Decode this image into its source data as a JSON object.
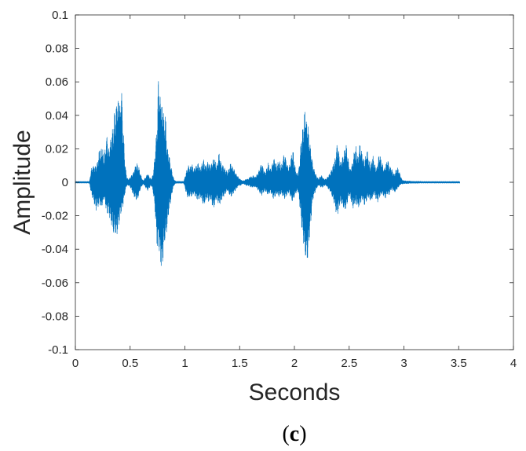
{
  "chart_data": {
    "type": "line",
    "xlabel": "Seconds",
    "ylabel": "Amplitude",
    "panel_label": {
      "open": "(",
      "letter": "c",
      "close": ")"
    },
    "xlim": [
      0,
      4
    ],
    "ylim": [
      -0.1,
      0.1
    ],
    "x_ticks": [
      0,
      0.5,
      1,
      1.5,
      2,
      2.5,
      3,
      3.5,
      4
    ],
    "x_tick_labels": [
      "0",
      "0.5",
      "1",
      "1.5",
      "2",
      "2.5",
      "3",
      "3.5",
      "4"
    ],
    "y_ticks": [
      -0.1,
      -0.08,
      -0.06,
      -0.04,
      -0.02,
      0,
      0.02,
      0.04,
      0.06,
      0.08,
      0.1
    ],
    "y_tick_labels": [
      "-0.1",
      "-0.08",
      "-0.06",
      "-0.04",
      "-0.02",
      "0",
      "0.02",
      "0.04",
      "0.06",
      "0.08",
      "0.1"
    ],
    "grid": false,
    "series": [
      {
        "color": "#0072BD",
        "sample_rate_hz": 100,
        "t0": 0,
        "envelope_max": [
          0.0005,
          0.0005,
          0.0005,
          0.0005,
          0.0005,
          0.0005,
          0.0005,
          0.0005,
          0.0005,
          0.0005,
          0.0005,
          0.0005,
          0.0005,
          0.0008,
          0.006,
          0.009,
          0.01,
          0.01,
          0.01,
          0.01,
          0.012,
          0.016,
          0.02,
          0.018,
          0.022,
          0.02,
          0.014,
          0.02,
          0.024,
          0.03,
          0.02,
          0.022,
          0.025,
          0.03,
          0.032,
          0.036,
          0.045,
          0.04,
          0.055,
          0.05,
          0.058,
          0.045,
          0.065,
          0.04,
          0.03,
          0.015,
          0.008,
          0.003,
          0.002,
          0.002,
          0.003,
          0.004,
          0.005,
          0.006,
          0.009,
          0.01,
          0.012,
          0.01,
          0.009,
          0.006,
          0.004,
          0.002,
          0.001,
          0.002,
          0.003,
          0.004,
          0.006,
          0.004,
          0.003,
          0.002,
          0.003,
          0.005,
          0.012,
          0.02,
          0.03,
          0.04,
          0.073,
          0.05,
          0.058,
          0.045,
          0.052,
          0.035,
          0.045,
          0.03,
          0.02,
          0.02,
          0.015,
          0.01,
          0.008,
          0.004,
          0.002,
          0.001,
          0.0006,
          0.0006,
          0.0006,
          0.0006,
          0.0006,
          0.0006,
          0.0006,
          0.0006,
          0.003,
          0.006,
          0.008,
          0.01,
          0.01,
          0.009,
          0.012,
          0.01,
          0.008,
          0.009,
          0.01,
          0.011,
          0.012,
          0.01,
          0.009,
          0.01,
          0.012,
          0.014,
          0.012,
          0.01,
          0.011,
          0.013,
          0.012,
          0.01,
          0.011,
          0.013,
          0.014,
          0.015,
          0.012,
          0.01,
          0.013,
          0.018,
          0.016,
          0.012,
          0.01,
          0.011,
          0.009,
          0.008,
          0.007,
          0.006,
          0.008,
          0.01,
          0.012,
          0.01,
          0.009,
          0.008,
          0.006,
          0.005,
          0.004,
          0.003,
          0.002,
          0.002,
          0.001,
          0.001,
          0.001,
          0.0015,
          0.002,
          0.002,
          0.002,
          0.003,
          0.004,
          0.003,
          0.004,
          0.004,
          0.003,
          0.004,
          0.005,
          0.006,
          0.008,
          0.01,
          0.012,
          0.01,
          0.008,
          0.006,
          0.007,
          0.009,
          0.012,
          0.01,
          0.008,
          0.009,
          0.012,
          0.015,
          0.014,
          0.012,
          0.01,
          0.012,
          0.013,
          0.012,
          0.01,
          0.012,
          0.016,
          0.018,
          0.015,
          0.012,
          0.01,
          0.009,
          0.012,
          0.015,
          0.02,
          0.018,
          0.012,
          0.008,
          0.006,
          0.005,
          0.008,
          0.015,
          0.025,
          0.03,
          0.035,
          0.04,
          0.048,
          0.035,
          0.04,
          0.03,
          0.025,
          0.02,
          0.015,
          0.01,
          0.008,
          0.006,
          0.004,
          0.003,
          0.002,
          0.003,
          0.004,
          0.004,
          0.003,
          0.002,
          0.002,
          0.002,
          0.003,
          0.004,
          0.005,
          0.006,
          0.008,
          0.01,
          0.012,
          0.014,
          0.018,
          0.024,
          0.022,
          0.016,
          0.012,
          0.014,
          0.015,
          0.018,
          0.02,
          0.024,
          0.02,
          0.015,
          0.01,
          0.008,
          0.01,
          0.012,
          0.016,
          0.02,
          0.022,
          0.018,
          0.015,
          0.02,
          0.024,
          0.02,
          0.018,
          0.015,
          0.012,
          0.016,
          0.02,
          0.018,
          0.014,
          0.01,
          0.012,
          0.015,
          0.016,
          0.012,
          0.01,
          0.008,
          0.012,
          0.016,
          0.018,
          0.014,
          0.012,
          0.01,
          0.008,
          0.01,
          0.012,
          0.015,
          0.012,
          0.009,
          0.01,
          0.008,
          0.006,
          0.005,
          0.006,
          0.008,
          0.009,
          0.008,
          0.006,
          0.004,
          0.002,
          0.0012,
          0.001,
          0.001,
          0.0008,
          0.0008,
          0.0008,
          0.0008,
          0.0008,
          0.0006,
          0.0006,
          0.0006,
          0.0006,
          0.0006,
          0.0006,
          0.0006,
          0.0006,
          0.0006,
          0.0005,
          0.0005,
          0.0005,
          0.0005,
          0.0005,
          0.0005,
          0.0005,
          0.0005,
          0.0005,
          0.0005,
          0.0005,
          0.0005,
          0.0005,
          0.0005,
          0.0005,
          0.0005,
          0.0005,
          0.0005,
          0.0005,
          0.0005,
          0.0005,
          0.0005,
          0.0005,
          0.0005,
          0.0005,
          0.0005,
          0.0005,
          0.0005,
          0.0005,
          0.0005,
          0.0005,
          0.0005,
          0.0005,
          0.0005,
          0.0005,
          0.0005,
          0.0005,
          0.0005
        ],
        "envelope_min": [
          -0.0005,
          -0.0005,
          -0.0005,
          -0.0005,
          -0.0005,
          -0.0005,
          -0.0005,
          -0.0005,
          -0.0005,
          -0.0005,
          -0.0005,
          -0.0005,
          -0.0005,
          -0.0008,
          -0.005,
          -0.008,
          -0.01,
          -0.012,
          -0.015,
          -0.017,
          -0.014,
          -0.015,
          -0.012,
          -0.016,
          -0.015,
          -0.014,
          -0.01,
          -0.012,
          -0.016,
          -0.02,
          -0.018,
          -0.02,
          -0.024,
          -0.026,
          -0.03,
          -0.032,
          -0.03,
          -0.034,
          -0.032,
          -0.028,
          -0.025,
          -0.02,
          -0.018,
          -0.016,
          -0.012,
          -0.008,
          -0.004,
          -0.002,
          -0.002,
          -0.002,
          -0.003,
          -0.004,
          -0.006,
          -0.008,
          -0.009,
          -0.01,
          -0.011,
          -0.01,
          -0.008,
          -0.005,
          -0.003,
          -0.002,
          -0.001,
          -0.002,
          -0.003,
          -0.004,
          -0.005,
          -0.004,
          -0.003,
          -0.002,
          -0.003,
          -0.006,
          -0.012,
          -0.02,
          -0.035,
          -0.04,
          -0.038,
          -0.045,
          -0.05,
          -0.055,
          -0.048,
          -0.04,
          -0.035,
          -0.032,
          -0.028,
          -0.02,
          -0.015,
          -0.012,
          -0.008,
          -0.004,
          -0.002,
          -0.001,
          -0.0006,
          -0.0006,
          -0.0006,
          -0.0006,
          -0.0006,
          -0.0006,
          -0.0006,
          -0.0006,
          -0.003,
          -0.006,
          -0.008,
          -0.01,
          -0.009,
          -0.008,
          -0.009,
          -0.008,
          -0.007,
          -0.008,
          -0.009,
          -0.01,
          -0.011,
          -0.01,
          -0.009,
          -0.01,
          -0.012,
          -0.015,
          -0.013,
          -0.011,
          -0.01,
          -0.011,
          -0.012,
          -0.01,
          -0.011,
          -0.014,
          -0.016,
          -0.015,
          -0.012,
          -0.01,
          -0.012,
          -0.014,
          -0.013,
          -0.012,
          -0.01,
          -0.009,
          -0.008,
          -0.007,
          -0.006,
          -0.005,
          -0.007,
          -0.008,
          -0.009,
          -0.008,
          -0.007,
          -0.006,
          -0.005,
          -0.004,
          -0.003,
          -0.002,
          -0.002,
          -0.002,
          -0.001,
          -0.001,
          -0.001,
          -0.0015,
          -0.002,
          -0.002,
          -0.002,
          -0.002,
          -0.003,
          -0.003,
          -0.003,
          -0.003,
          -0.003,
          -0.003,
          -0.004,
          -0.005,
          -0.006,
          -0.007,
          -0.008,
          -0.007,
          -0.006,
          -0.005,
          -0.006,
          -0.007,
          -0.008,
          -0.007,
          -0.006,
          -0.007,
          -0.009,
          -0.01,
          -0.009,
          -0.008,
          -0.007,
          -0.008,
          -0.009,
          -0.008,
          -0.007,
          -0.008,
          -0.009,
          -0.01,
          -0.009,
          -0.008,
          -0.007,
          -0.006,
          -0.008,
          -0.01,
          -0.012,
          -0.011,
          -0.009,
          -0.007,
          -0.006,
          -0.005,
          -0.008,
          -0.015,
          -0.022,
          -0.03,
          -0.035,
          -0.042,
          -0.046,
          -0.05,
          -0.048,
          -0.04,
          -0.032,
          -0.025,
          -0.015,
          -0.01,
          -0.008,
          -0.006,
          -0.004,
          -0.003,
          -0.002,
          -0.002,
          -0.003,
          -0.003,
          -0.003,
          -0.002,
          -0.002,
          -0.002,
          -0.003,
          -0.004,
          -0.005,
          -0.006,
          -0.008,
          -0.01,
          -0.012,
          -0.015,
          -0.018,
          -0.02,
          -0.018,
          -0.015,
          -0.012,
          -0.013,
          -0.015,
          -0.016,
          -0.018,
          -0.016,
          -0.014,
          -0.01,
          -0.008,
          -0.009,
          -0.012,
          -0.015,
          -0.016,
          -0.014,
          -0.012,
          -0.014,
          -0.016,
          -0.015,
          -0.013,
          -0.012,
          -0.01,
          -0.012,
          -0.014,
          -0.013,
          -0.011,
          -0.009,
          -0.01,
          -0.011,
          -0.012,
          -0.01,
          -0.009,
          -0.007,
          -0.009,
          -0.011,
          -0.012,
          -0.01,
          -0.009,
          -0.008,
          -0.007,
          -0.008,
          -0.009,
          -0.01,
          -0.008,
          -0.007,
          -0.008,
          -0.007,
          -0.005,
          -0.004,
          -0.005,
          -0.006,
          -0.006,
          -0.005,
          -0.004,
          -0.003,
          -0.002,
          -0.0012,
          -0.001,
          -0.001,
          -0.0008,
          -0.0008,
          -0.0008,
          -0.0008,
          -0.0008,
          -0.0006,
          -0.0006,
          -0.0006,
          -0.0006,
          -0.0006,
          -0.0006,
          -0.0006,
          -0.0006,
          -0.0006,
          -0.0005,
          -0.0005,
          -0.0005,
          -0.0005,
          -0.0005,
          -0.0005,
          -0.0005,
          -0.0005,
          -0.0005,
          -0.0005,
          -0.0005,
          -0.0005,
          -0.0005,
          -0.0005,
          -0.0005,
          -0.0005,
          -0.0005,
          -0.0005,
          -0.0005,
          -0.0005,
          -0.0005,
          -0.0005,
          -0.0005,
          -0.0005,
          -0.0005,
          -0.0005,
          -0.0005,
          -0.0005,
          -0.0005,
          -0.0005,
          -0.0005,
          -0.0005,
          -0.0005,
          -0.0005,
          -0.0005,
          -0.0005,
          -0.0005,
          -0.0005
        ]
      }
    ]
  }
}
